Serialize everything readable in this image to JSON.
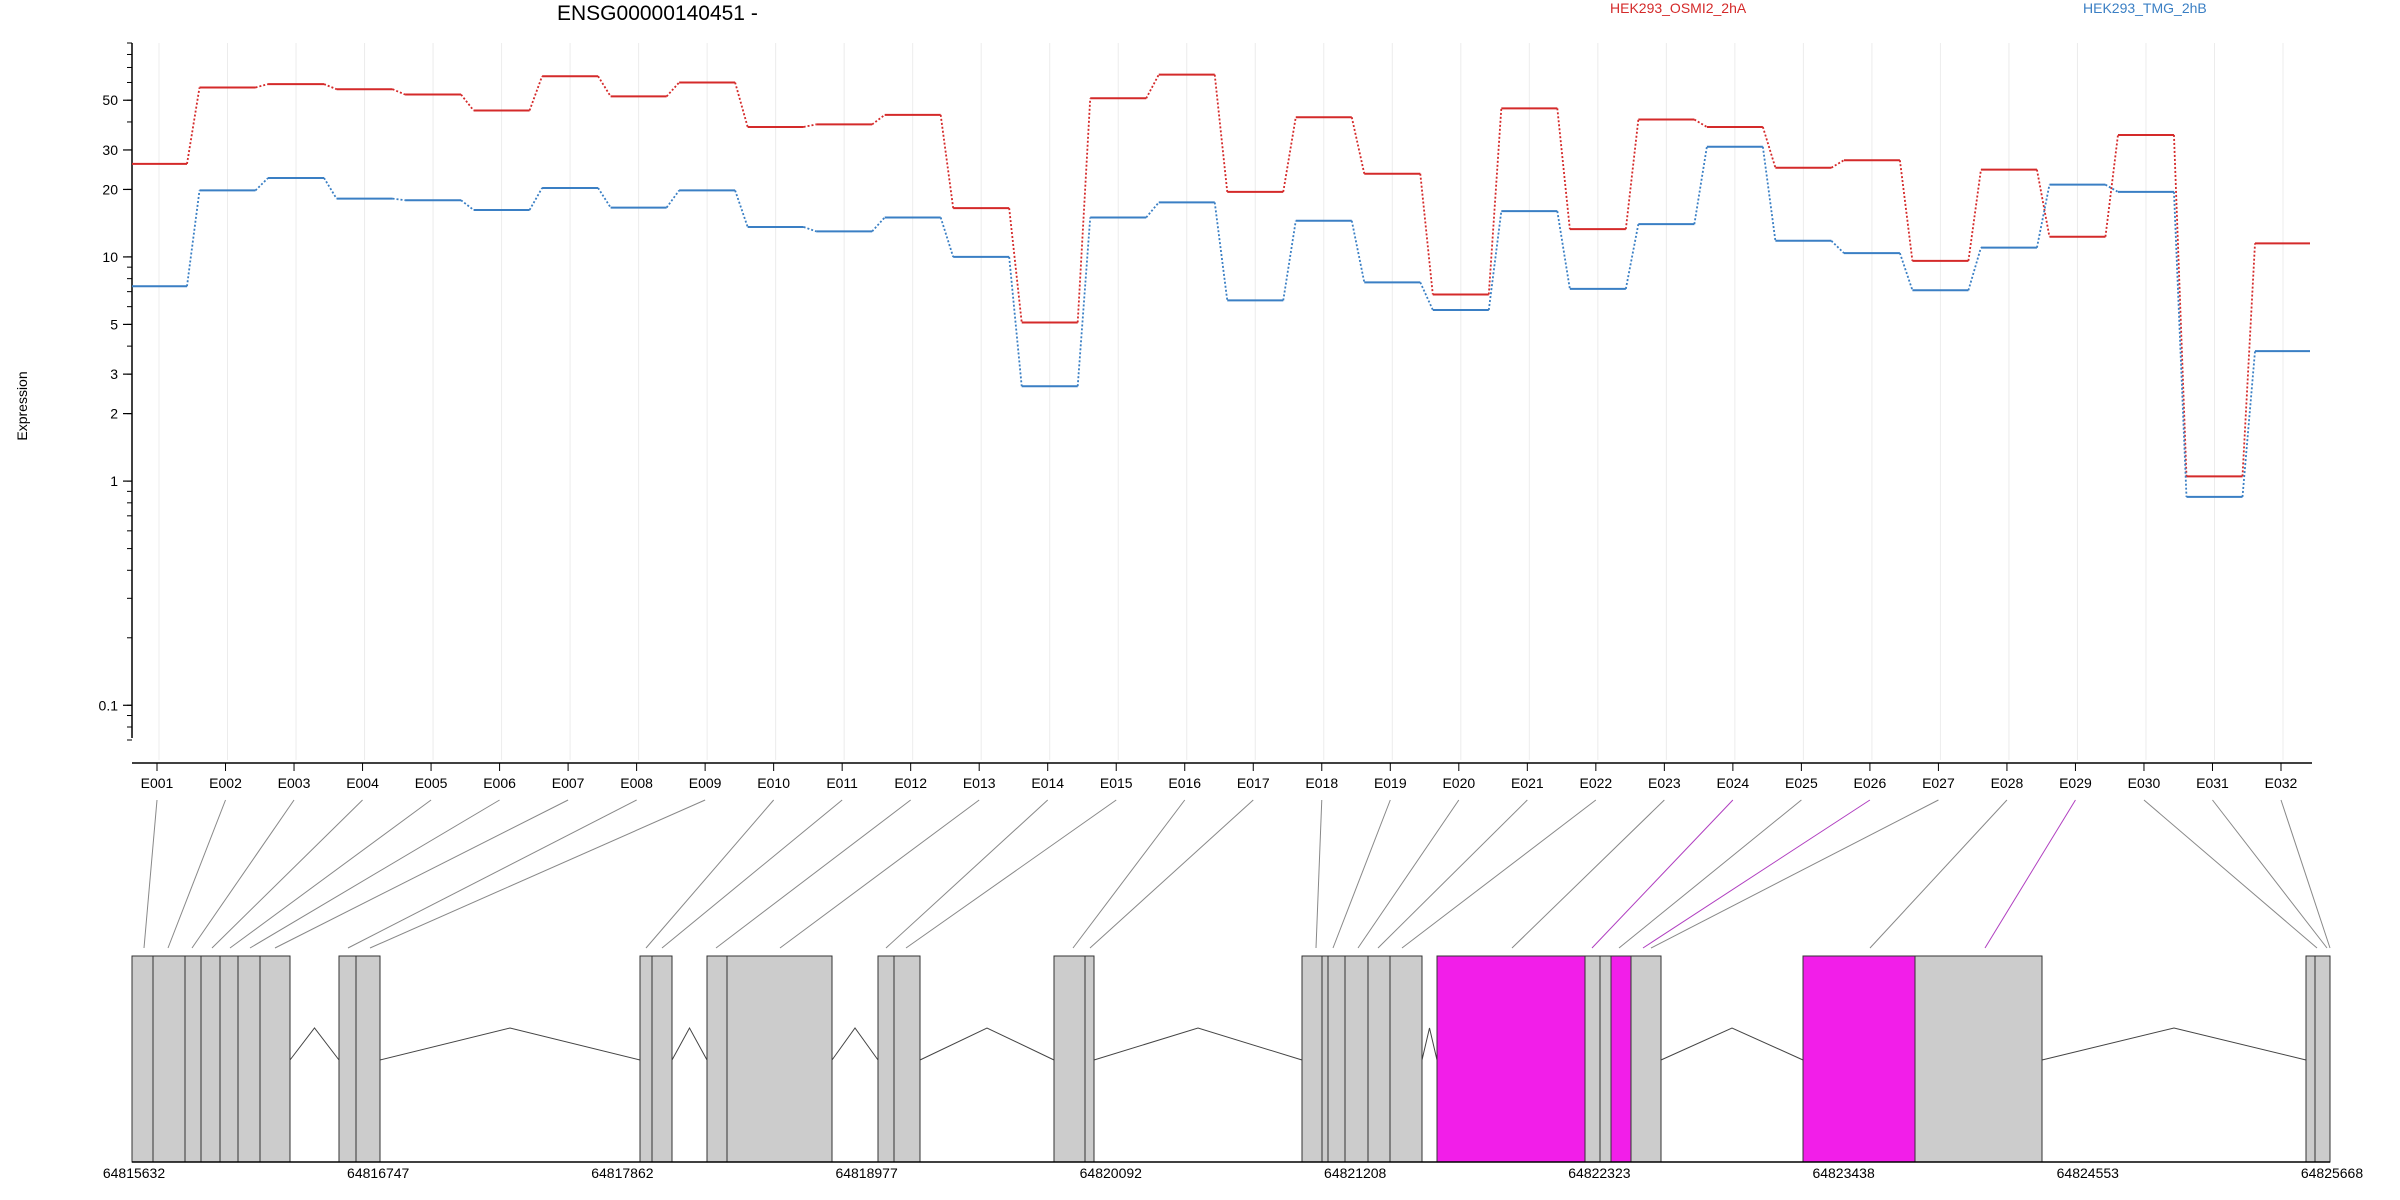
{
  "chart_data": {
    "type": "line",
    "title": "ENSG00000140451 -",
    "ylabel": "Expression",
    "y_scale": "log",
    "ylim": [
      0.07,
      90
    ],
    "y_ticks": [
      0.1,
      1,
      2,
      3,
      5,
      10,
      20,
      30,
      50
    ],
    "y_tick_labels": [
      "0.1",
      "1",
      "2",
      "3",
      "5",
      "10",
      "20",
      "30",
      "50"
    ],
    "grid": "vertical",
    "legend_placement": "top",
    "categories": [
      "E001",
      "E002",
      "E003",
      "E004",
      "E005",
      "E006",
      "E007",
      "E008",
      "E009",
      "E010",
      "E011",
      "E012",
      "E013",
      "E014",
      "E015",
      "E016",
      "E017",
      "E018",
      "E019",
      "E020",
      "E021",
      "E022",
      "E023",
      "E024",
      "E025",
      "E026",
      "E027",
      "E028",
      "E029",
      "E030",
      "E031",
      "E032"
    ],
    "series": [
      {
        "name": "HEK293_OSMI2_2hA",
        "color": "#d42a2a",
        "values": [
          26,
          57,
          59,
          56,
          53,
          45,
          64,
          52,
          60,
          38,
          39,
          43,
          16.5,
          5.1,
          51,
          65,
          19.5,
          42,
          23.5,
          6.8,
          46,
          13.3,
          41,
          38,
          25,
          27,
          9.6,
          24.5,
          12.3,
          35,
          1.05,
          11.5
        ]
      },
      {
        "name": "HEK293_TMG_2hB",
        "color": "#3a7fc4",
        "values": [
          7.4,
          19.8,
          22.5,
          18.2,
          17.9,
          16.2,
          20.3,
          16.6,
          19.8,
          13.6,
          13,
          15,
          10,
          2.65,
          15,
          17.5,
          6.4,
          14.5,
          7.7,
          5.8,
          16,
          7.2,
          14,
          31,
          11.8,
          10.4,
          7.1,
          11,
          21,
          19.5,
          0.85,
          3.8
        ]
      }
    ],
    "gene_model": {
      "x_ticks": [
        64815632,
        64816747,
        64817862,
        64818977,
        64820092,
        64821208,
        64822323,
        64823438,
        64824553,
        64825668
      ],
      "x_tick_labels": [
        "64815632",
        "64816747",
        "64817862",
        "64818977",
        "64820092",
        "64821208",
        "64822323",
        "64823438",
        "64824553",
        "64825668"
      ],
      "default_color": "#cccccc",
      "highlight_color": "#f21ee9",
      "highlighted_exons": [
        "E024",
        "E026",
        "E029"
      ]
    }
  }
}
